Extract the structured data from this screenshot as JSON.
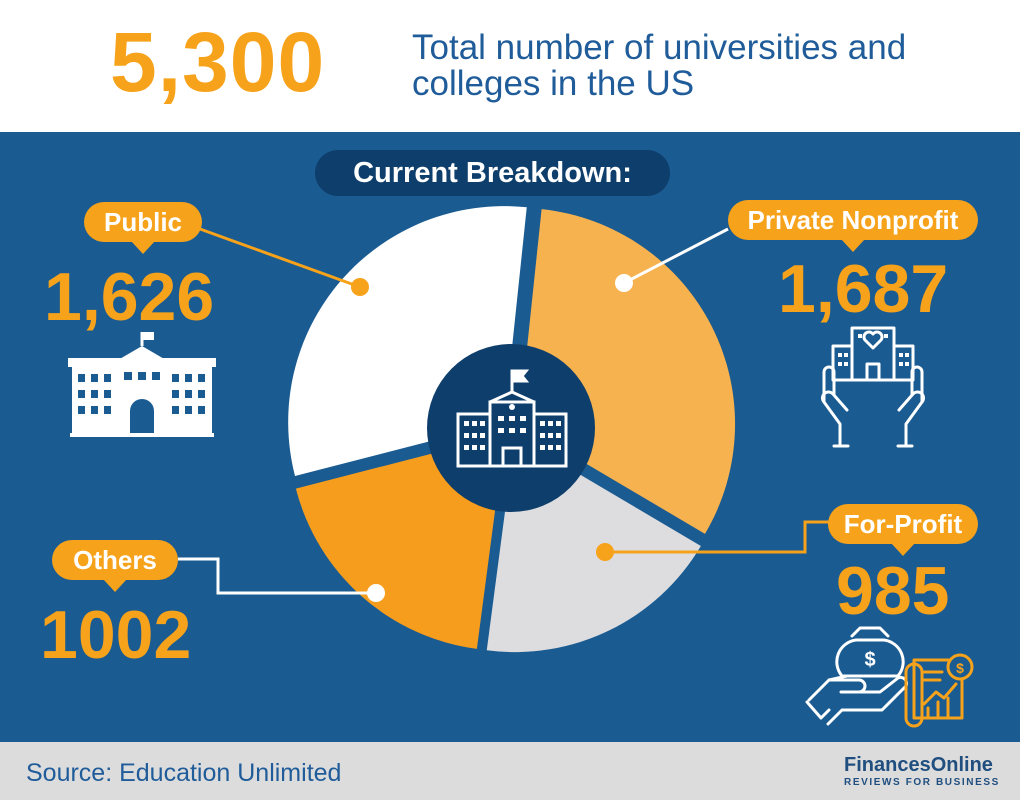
{
  "header": {
    "total": "5,300",
    "headline": "Total number of universities and colleges in the US"
  },
  "panel": {
    "breakdown_label": "Current Breakdown:"
  },
  "chart_data": {
    "type": "pie",
    "title": "Current Breakdown:",
    "categories": [
      "Public",
      "Private Nonprofit",
      "For-Profit",
      "Others"
    ],
    "values": [
      1626,
      1687,
      985,
      1002
    ],
    "value_labels": [
      "1,626",
      "1,687",
      "985",
      "1002"
    ],
    "colors": [
      "#ffffff",
      "#f7b250",
      "#dddde0",
      "#f79d1d"
    ],
    "total": 5300
  },
  "colors": {
    "accent": "#f7a21b",
    "panel_background": "#1a5b91",
    "pill_background": "#0e3e6b",
    "text_blue": "#1f5c99"
  },
  "icons": {
    "center": "university-building-icon",
    "public": "public-university-building-icon",
    "private_nonprofit": "hands-holding-building-icon",
    "for_profit_money": "hand-money-bag-icon",
    "for_profit_chart": "financial-report-chart-icon",
    "brand": "cloud-logo-icon"
  },
  "footer": {
    "source": "Source: Education Unlimited",
    "brand_name": "FinancesOnline",
    "brand_tagline": "REVIEWS FOR BUSINESS"
  }
}
